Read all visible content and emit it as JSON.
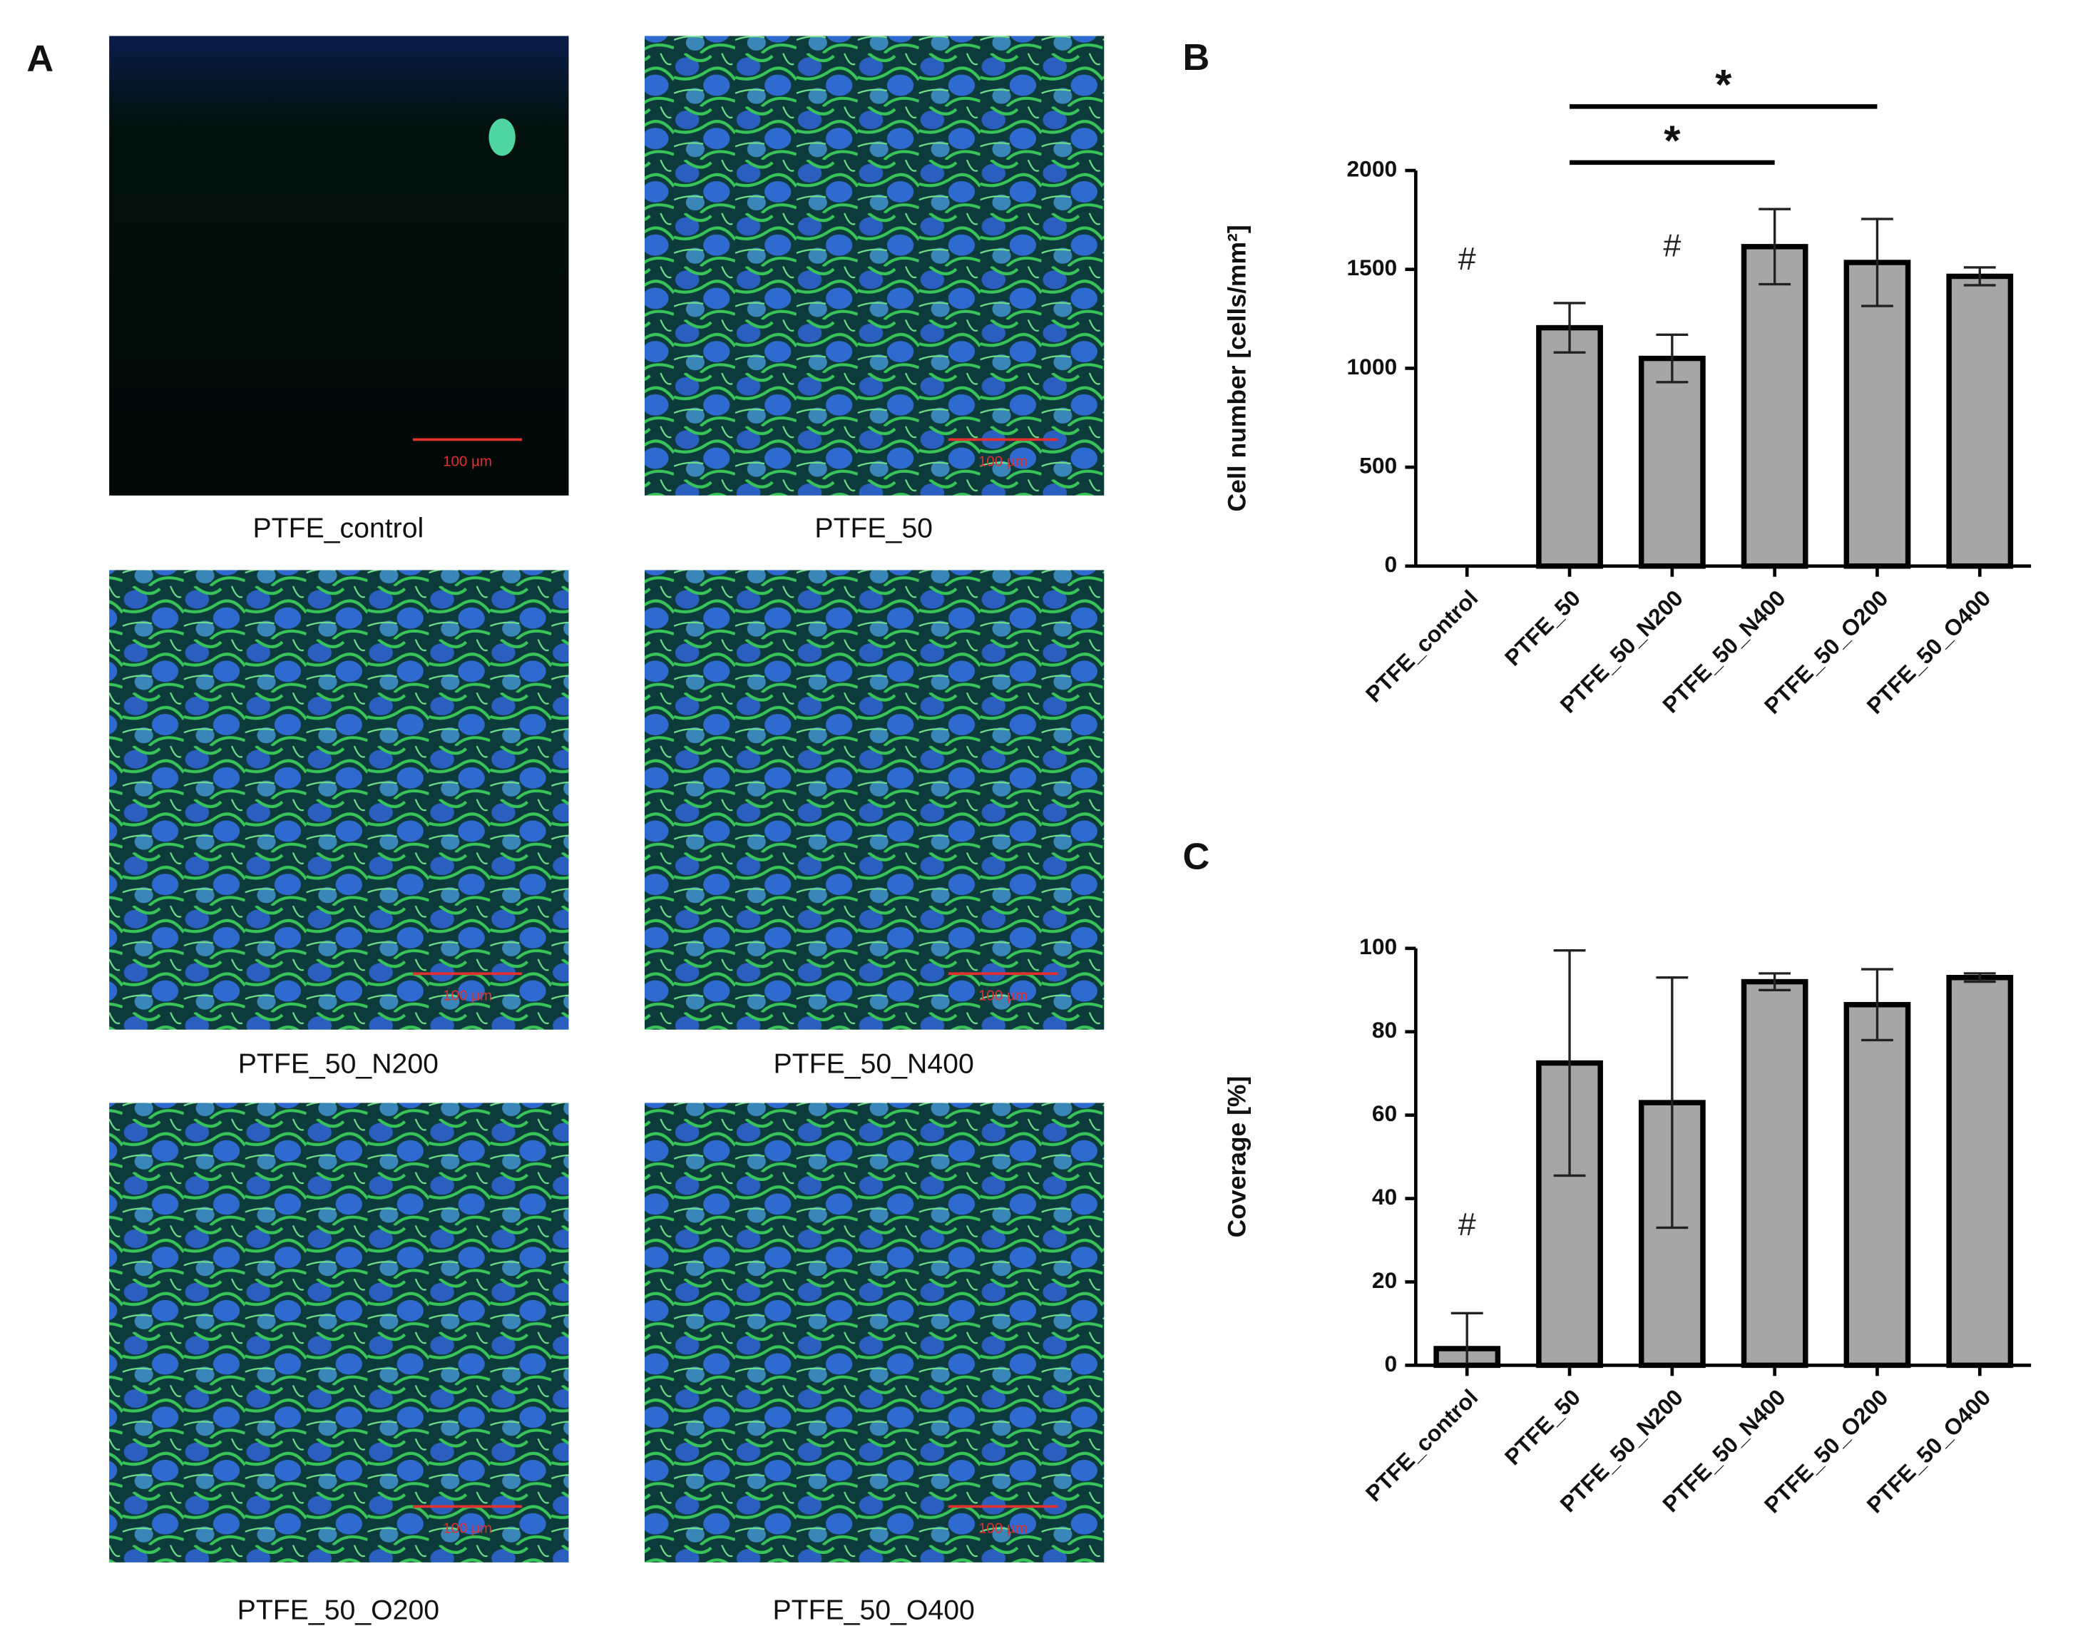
{
  "figure": {
    "panel_label": "A",
    "images": [
      {
        "caption": "PTFE_control",
        "scale_bar": "100 µm"
      },
      {
        "caption": "PTFE_50",
        "scale_bar": "100 µm"
      },
      {
        "caption": "PTFE_50_N200",
        "scale_bar": "100 µm"
      },
      {
        "caption": "PTFE_50_N400",
        "scale_bar": "100 µm"
      },
      {
        "caption": "PTFE_50_O200",
        "scale_bar": "100 µm"
      },
      {
        "caption": "PTFE_50_O400",
        "scale_bar": "100 µm"
      }
    ]
  },
  "chart_data": [
    {
      "type": "bar",
      "panel_label": "B",
      "y_label": "Cell number [cells/mm²]",
      "categories": [
        "PTFE_control",
        "PTFE_50",
        "PTFE_50_N200",
        "PTFE_50_N400",
        "PTFE_50_O200",
        "PTFE_50_O400"
      ],
      "values": [
        null,
        1205,
        1050,
        1615,
        1535,
        1465
      ],
      "errors": [
        null,
        125,
        120,
        190,
        220,
        45
      ],
      "color": "#a6a6a6",
      "ylim": [
        0,
        2000
      ],
      "yticks": [
        0,
        500,
        1000,
        1500,
        2000
      ],
      "annotations": [
        {
          "text": "#",
          "category": "PTFE_control"
        },
        {
          "text": "#",
          "category": "PTFE_50_N200"
        }
      ],
      "significance": [
        {
          "text": "*",
          "from": "PTFE_50",
          "to": "PTFE_50_N400"
        },
        {
          "text": "*",
          "from": "PTFE_50",
          "to": "PTFE_50_O200"
        }
      ]
    },
    {
      "type": "bar",
      "panel_label": "C",
      "y_label": "Coverage [%]",
      "categories": [
        "PTFE_control",
        "PTFE_50",
        "PTFE_50_N200",
        "PTFE_50_N400",
        "PTFE_50_O200",
        "PTFE_50_O400"
      ],
      "values": [
        4,
        72.5,
        63,
        92,
        86.5,
        93
      ],
      "errors": [
        8.5,
        27,
        30,
        2,
        8.5,
        1
      ],
      "color": "#a6a6a6",
      "ylim": [
        0,
        100
      ],
      "yticks": [
        0,
        20,
        40,
        60,
        80,
        100
      ],
      "annotations": [
        {
          "text": "#",
          "category": "PTFE_control"
        }
      ]
    }
  ]
}
